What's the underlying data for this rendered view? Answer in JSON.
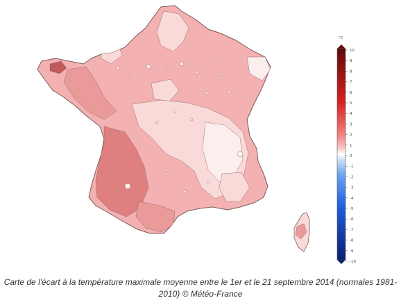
{
  "map": {
    "legend": {
      "unit": "°C",
      "ticks": [
        "10",
        "9",
        "8",
        "7",
        "6",
        "5",
        "4",
        "3",
        "2",
        "1",
        "0",
        "-1",
        "-2",
        "-3",
        "-4",
        "-5",
        "-6",
        "-7",
        "-8",
        "-9",
        "-10"
      ],
      "colors": {
        "max": "#5e0a0a",
        "strong_warm": "#d81f1f",
        "warm": "#f27a7a",
        "mild_warm": "#f8c6c6",
        "neutral": "#ffffff",
        "mild_cool": "#c6dcf8",
        "cool": "#6aa2f0",
        "strong_cool": "#1e5ee0",
        "min": "#0a1e6e"
      }
    },
    "region_colors": {
      "base": "#f3b1b1",
      "light": "#fad9d9",
      "pale": "#fdeeee",
      "medium": "#eb9a9a",
      "dark": "#e07f7f",
      "darkest": "#c25a5a",
      "border": "#7a5a5a"
    }
  },
  "caption": {
    "line1": "Carte de l'écart à la température maximale moyenne entre le 1er et le 21 septembre 2014 (normales 1981-",
    "line2": "2010) © Météo-France"
  }
}
